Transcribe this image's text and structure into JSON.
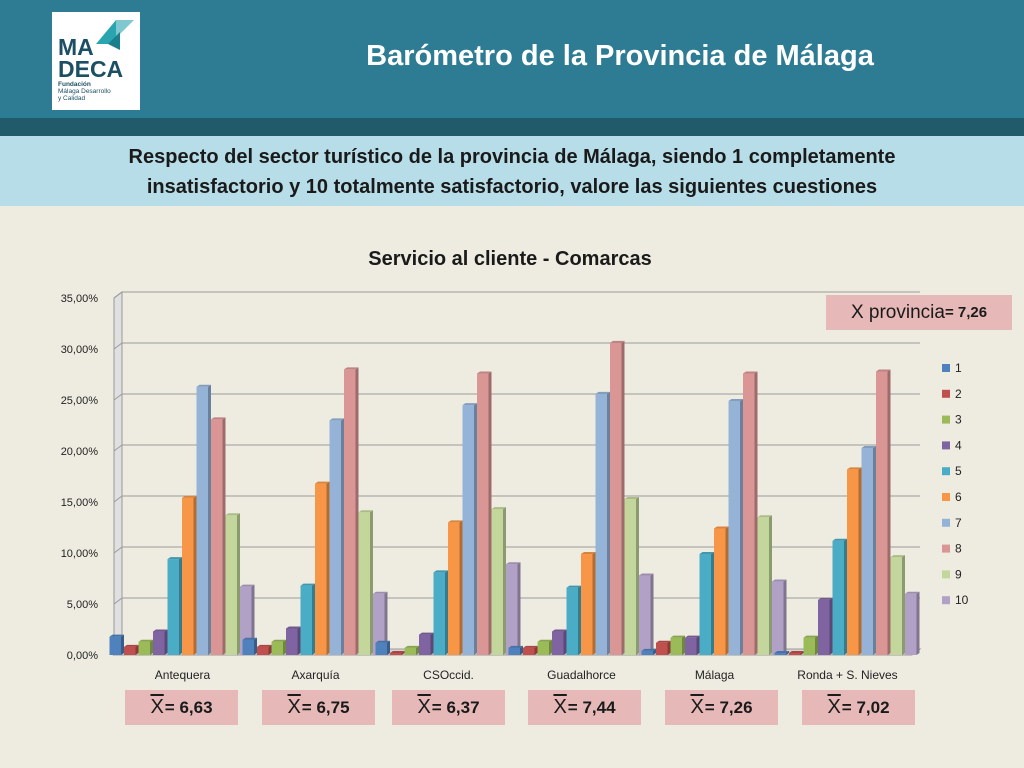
{
  "header": {
    "title": "Barómetro de la Provincia de Málaga",
    "logo": {
      "line1": "MA",
      "line2": "DECA",
      "sub1": "Fundación",
      "sub2": "Málaga Desarrollo",
      "sub3": "y Calidad"
    }
  },
  "question": {
    "line1": "Respecto del sector turístico de la provincia de Málaga, siendo 1 completamente",
    "line2": "insatisfactorio y 10 totalmente satisfactorio, valore las siguientes cuestiones"
  },
  "province_mean": {
    "label": "X provincia",
    "value": "= 7,26"
  },
  "means": [
    {
      "label": "X",
      "value": "= 6,63"
    },
    {
      "label": "X",
      "value": "= 6,75"
    },
    {
      "label": "X",
      "value": "= 6,37"
    },
    {
      "label": "X",
      "value": "= 7,44"
    },
    {
      "label": "X",
      "value": "= 7,26"
    },
    {
      "label": "X",
      "value": "= 7,02"
    }
  ],
  "colors": {
    "header": "#2e7c93",
    "band": "#b6dde8",
    "mean_box": "#e6b9b8"
  },
  "chart_data": {
    "type": "bar",
    "title": "Servicio al cliente - Comarcas",
    "categories": [
      "Antequera",
      "Axarquía",
      "CSOccid.",
      "Guadalhorce",
      "Málaga",
      "Ronda + S. Nieves"
    ],
    "ylim": [
      0,
      35
    ],
    "yticks": [
      "0,00%",
      "5,00%",
      "10,00%",
      "15,00%",
      "20,00%",
      "25,00%",
      "30,00%",
      "35,00%"
    ],
    "legend_position": "right",
    "series": [
      {
        "name": "1",
        "color": "#4f81bd",
        "values": [
          1.8,
          1.5,
          1.2,
          0.7,
          0.4,
          0.2
        ]
      },
      {
        "name": "2",
        "color": "#c0504d",
        "values": [
          0.8,
          0.8,
          0.2,
          0.7,
          1.2,
          0.2
        ]
      },
      {
        "name": "3",
        "color": "#9bbb59",
        "values": [
          1.3,
          1.3,
          0.7,
          1.3,
          1.7,
          1.7
        ]
      },
      {
        "name": "4",
        "color": "#8064a2",
        "values": [
          2.3,
          2.6,
          2.0,
          2.3,
          1.7,
          5.4
        ]
      },
      {
        "name": "5",
        "color": "#4bacc6",
        "values": [
          9.4,
          6.8,
          8.1,
          6.6,
          9.9,
          11.2
        ]
      },
      {
        "name": "6",
        "color": "#f79646",
        "values": [
          15.4,
          16.8,
          13.0,
          9.9,
          12.4,
          18.2
        ]
      },
      {
        "name": "7",
        "color": "#95b3d7",
        "values": [
          26.3,
          23.0,
          24.5,
          25.6,
          24.9,
          20.3
        ]
      },
      {
        "name": "8",
        "color": "#d99694",
        "values": [
          23.1,
          28.0,
          27.6,
          30.6,
          27.6,
          27.8
        ]
      },
      {
        "name": "9",
        "color": "#c3d69b",
        "values": [
          13.7,
          14.0,
          14.3,
          15.3,
          13.5,
          9.6
        ]
      },
      {
        "name": "10",
        "color": "#b2a1c7",
        "values": [
          6.7,
          6.0,
          8.9,
          7.8,
          7.2,
          6.0
        ]
      }
    ]
  }
}
